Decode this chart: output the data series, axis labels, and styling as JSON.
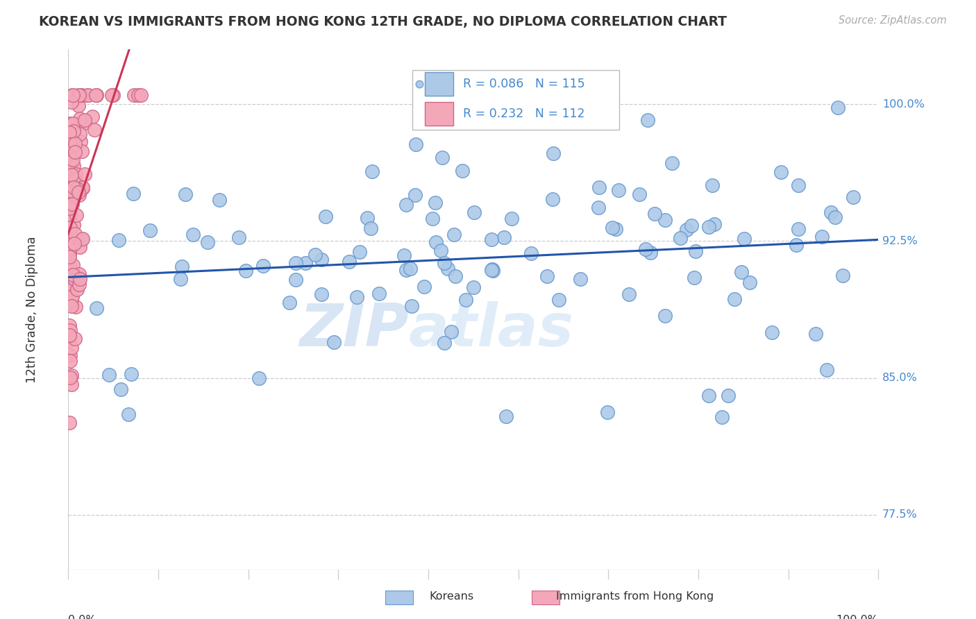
{
  "title": "KOREAN VS IMMIGRANTS FROM HONG KONG 12TH GRADE, NO DIPLOMA CORRELATION CHART",
  "source_text": "Source: ZipAtlas.com",
  "ylabel": "12th Grade, No Diploma",
  "ytick_labels": [
    "77.5%",
    "85.0%",
    "92.5%",
    "100.0%"
  ],
  "ytick_values": [
    0.775,
    0.85,
    0.925,
    1.0
  ],
  "xmin": 0.0,
  "xmax": 1.0,
  "ymin": 0.745,
  "ymax": 1.03,
  "legend_r_blue": "R = 0.086",
  "legend_n_blue": "N = 115",
  "legend_r_pink": "R = 0.232",
  "legend_n_pink": "N = 112",
  "blue_color": "#adc9e8",
  "pink_color": "#f4a7b8",
  "blue_edge_color": "#6699cc",
  "pink_edge_color": "#cc6688",
  "blue_line_color": "#2255aa",
  "pink_line_color": "#cc3355",
  "watermark_zip": "ZIP",
  "watermark_atlas": "atlas",
  "watermark_color": "#c8dff5",
  "bg_color": "#ffffff",
  "grid_color": "#cccccc",
  "ytick_label_color": "#4488cc",
  "text_color": "#333333",
  "source_color": "#aaaaaa"
}
